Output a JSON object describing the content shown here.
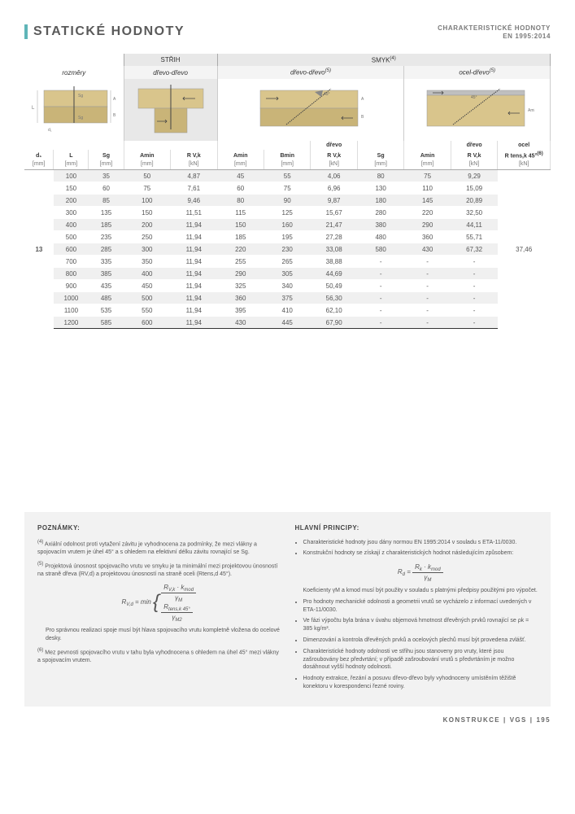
{
  "header": {
    "title": "STATICKÉ HODNOTY",
    "standard_line1": "CHARAKTERISTICKÉ HODNOTY",
    "standard_line2": "EN 1995:2014"
  },
  "table": {
    "cat1": "STŘIH",
    "cat2": "SMYK",
    "cat2_sup": "(4)",
    "sub_dim": "rozměry",
    "sub_ww": "dřevo-dřevo",
    "sub_ww2": "dřevo-dřevo",
    "sub_ww2_sup": "(5)",
    "sub_sw": "ocel-dřevo",
    "sub_sw_sup": "(5)",
    "mat_drevo": "dřevo",
    "mat_ocel": "ocel",
    "h_d1": "d₁",
    "h_L": "L",
    "h_Sg": "Sg",
    "h_Amin": "Amin",
    "h_Rvk": "R V,k",
    "h_Bmin": "Bmin",
    "h_Rtens": "R tens,k 45°",
    "h_Rtens_sup": "(6)",
    "u_mm": "[mm]",
    "u_kn": "[kN]",
    "d1_value": "13",
    "rtens_value": "37,46",
    "rows": [
      {
        "L": "100",
        "Sg": "35",
        "A1": "50",
        "R1": "4,87",
        "A2": "45",
        "B2": "55",
        "R2": "4,06",
        "Sg2": "80",
        "A3": "75",
        "R3": "9,29"
      },
      {
        "L": "150",
        "Sg": "60",
        "A1": "75",
        "R1": "7,61",
        "A2": "60",
        "B2": "75",
        "R2": "6,96",
        "Sg2": "130",
        "A3": "110",
        "R3": "15,09"
      },
      {
        "L": "200",
        "Sg": "85",
        "A1": "100",
        "R1": "9,46",
        "A2": "80",
        "B2": "90",
        "R2": "9,87",
        "Sg2": "180",
        "A3": "145",
        "R3": "20,89"
      },
      {
        "L": "300",
        "Sg": "135",
        "A1": "150",
        "R1": "11,51",
        "A2": "115",
        "B2": "125",
        "R2": "15,67",
        "Sg2": "280",
        "A3": "220",
        "R3": "32,50"
      },
      {
        "L": "400",
        "Sg": "185",
        "A1": "200",
        "R1": "11,94",
        "A2": "150",
        "B2": "160",
        "R2": "21,47",
        "Sg2": "380",
        "A3": "290",
        "R3": "44,11"
      },
      {
        "L": "500",
        "Sg": "235",
        "A1": "250",
        "R1": "11,94",
        "A2": "185",
        "B2": "195",
        "R2": "27,28",
        "Sg2": "480",
        "A3": "360",
        "R3": "55,71"
      },
      {
        "L": "600",
        "Sg": "285",
        "A1": "300",
        "R1": "11,94",
        "A2": "220",
        "B2": "230",
        "R2": "33,08",
        "Sg2": "580",
        "A3": "430",
        "R3": "67,32"
      },
      {
        "L": "700",
        "Sg": "335",
        "A1": "350",
        "R1": "11,94",
        "A2": "255",
        "B2": "265",
        "R2": "38,88",
        "Sg2": "-",
        "A3": "-",
        "R3": "-"
      },
      {
        "L": "800",
        "Sg": "385",
        "A1": "400",
        "R1": "11,94",
        "A2": "290",
        "B2": "305",
        "R2": "44,69",
        "Sg2": "-",
        "A3": "-",
        "R3": "-"
      },
      {
        "L": "900",
        "Sg": "435",
        "A1": "450",
        "R1": "11,94",
        "A2": "325",
        "B2": "340",
        "R2": "50,49",
        "Sg2": "-",
        "A3": "-",
        "R3": "-"
      },
      {
        "L": "1000",
        "Sg": "485",
        "A1": "500",
        "R1": "11,94",
        "A2": "360",
        "B2": "375",
        "R2": "56,30",
        "Sg2": "-",
        "A3": "-",
        "R3": "-"
      },
      {
        "L": "1100",
        "Sg": "535",
        "A1": "550",
        "R1": "11,94",
        "A2": "395",
        "B2": "410",
        "R2": "62,10",
        "Sg2": "-",
        "A3": "-",
        "R3": "-"
      },
      {
        "L": "1200",
        "Sg": "585",
        "A1": "600",
        "R1": "11,94",
        "A2": "430",
        "B2": "445",
        "R2": "67,90",
        "Sg2": "-",
        "A3": "-",
        "R3": "-"
      }
    ]
  },
  "notes": {
    "left_title": "POZNÁMKY:",
    "n4": "Axiální odolnost proti vytažení závitu je vyhodnocena za podmínky, že mezi vlákny a spojovacím vrutem je úhel 45° a s ohledem na efektivní délku závitu rovnající se Sg.",
    "n5": "Projektová únosnost spojovacího vrutu ve smyku je ta minimální mezi projektovou únosností na straně dřeva (RV,d) a projektovou únosností na straně oceli (Rtens,d 45°).",
    "n5_post": "Pro správnou realizaci spoje musí být hlava spojovacího vrutu kompletně vložena do ocelové desky.",
    "n6": "Mez pevnosti spojovacího vrutu v tahu byla vyhodnocena s ohledem na úhel 45° mezi vlákny a spojovacím vrutem.",
    "right_title": "HLAVNÍ PRINCIPY:",
    "p1": "Charakteristické hodnoty jsou dány normou EN 1995:2014 v souladu s ETA-11/0030.",
    "p2": "Konstrukční hodnoty se získají z charakteristických hodnot následujícím způsobem:",
    "p2b": "Koeficienty γM a kmod musí být použity v souladu s platnými předpisy použitými pro výpočet.",
    "p3": "Pro hodnoty mechanické odolnosti a geometrii vrutů se vycházelo z informací uvedených v ETA-11/0030.",
    "p4": "Ve fázi výpočtu byla brána v úvahu objemová hmotnost dřevěných prvků rovnající se ρk = 385 kg/m³.",
    "p5": "Dimenzování a kontrola dřevěných prvků a ocelových plechů musí být provedena zvlášť.",
    "p6": "Charakteristické hodnoty odolnosti ve střihu jsou stanoveny pro vruty, které jsou zašroubovány bez předvrtání; v případě zašroubování vrutů s předvrtáním je možno dosáhnout vyšší hodnoty odolnosti.",
    "p7": "Hodnoty extrakce, řezání a posuvu dřevo-dřevo byly vyhodnoceny umístěním těžiště konektoru v korespondenci řezné roviny."
  },
  "footer": {
    "section": "KONSTRUKCE",
    "code": "VGS",
    "page": "195"
  },
  "colors": {
    "accent": "#5fb5b8",
    "wood": "#d9c58c",
    "wood_dark": "#c9b478"
  }
}
